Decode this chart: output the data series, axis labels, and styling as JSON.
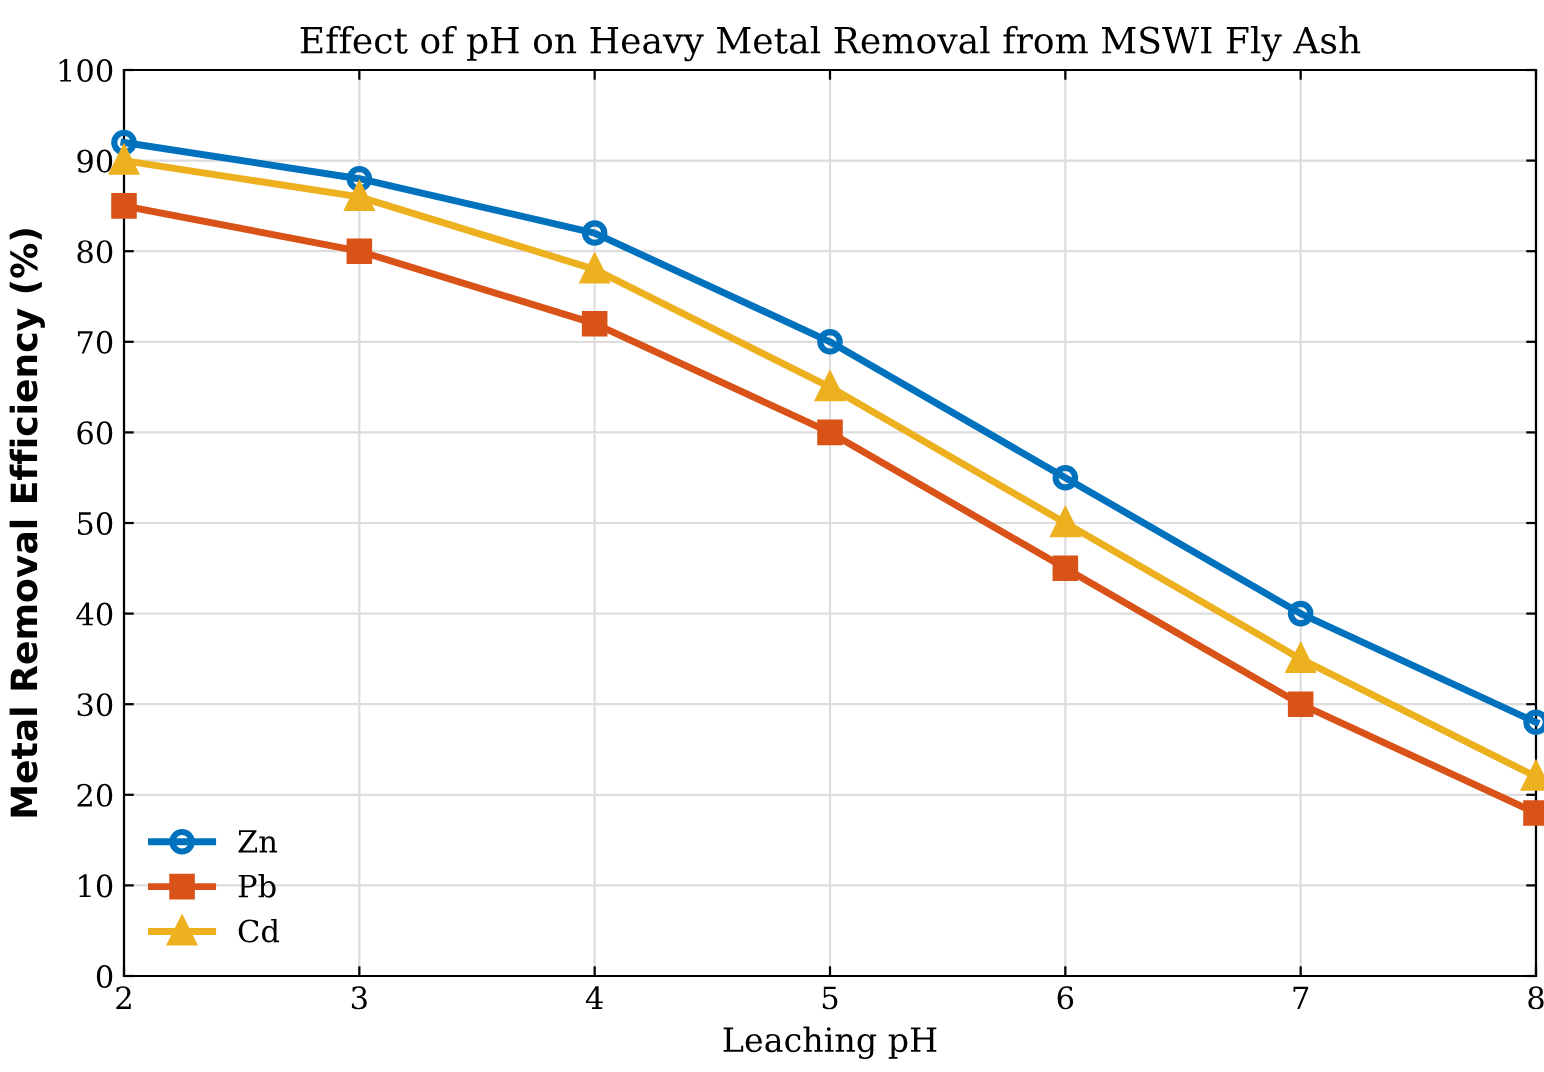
{
  "chart_data": {
    "type": "line",
    "title": "Effect of pH on Heavy Metal Removal from MSWI Fly Ash",
    "xlabel": "Leaching pH",
    "ylabel": "Metal Removal Efficiency (%)",
    "x": [
      2,
      3,
      4,
      5,
      6,
      7,
      8
    ],
    "series": [
      {
        "name": "Zn",
        "color": "#0072bd",
        "marker": "circle",
        "values": [
          92,
          88,
          82,
          70,
          55,
          40,
          28
        ]
      },
      {
        "name": "Pb",
        "color": "#d95319",
        "marker": "square",
        "values": [
          85,
          80,
          72,
          60,
          45,
          30,
          18
        ]
      },
      {
        "name": "Cd",
        "color": "#edb120",
        "marker": "triangle",
        "values": [
          90,
          86,
          78,
          65,
          50,
          35,
          22
        ]
      }
    ],
    "xlim": [
      2,
      8
    ],
    "xticks": [
      2,
      3,
      4,
      5,
      6,
      7,
      8
    ],
    "ylim": [
      0,
      100
    ],
    "yticks": [
      0,
      10,
      20,
      30,
      40,
      50,
      60,
      70,
      80,
      90,
      100
    ],
    "grid": true,
    "legend": "bottom left",
    "line_style": "solid"
  }
}
